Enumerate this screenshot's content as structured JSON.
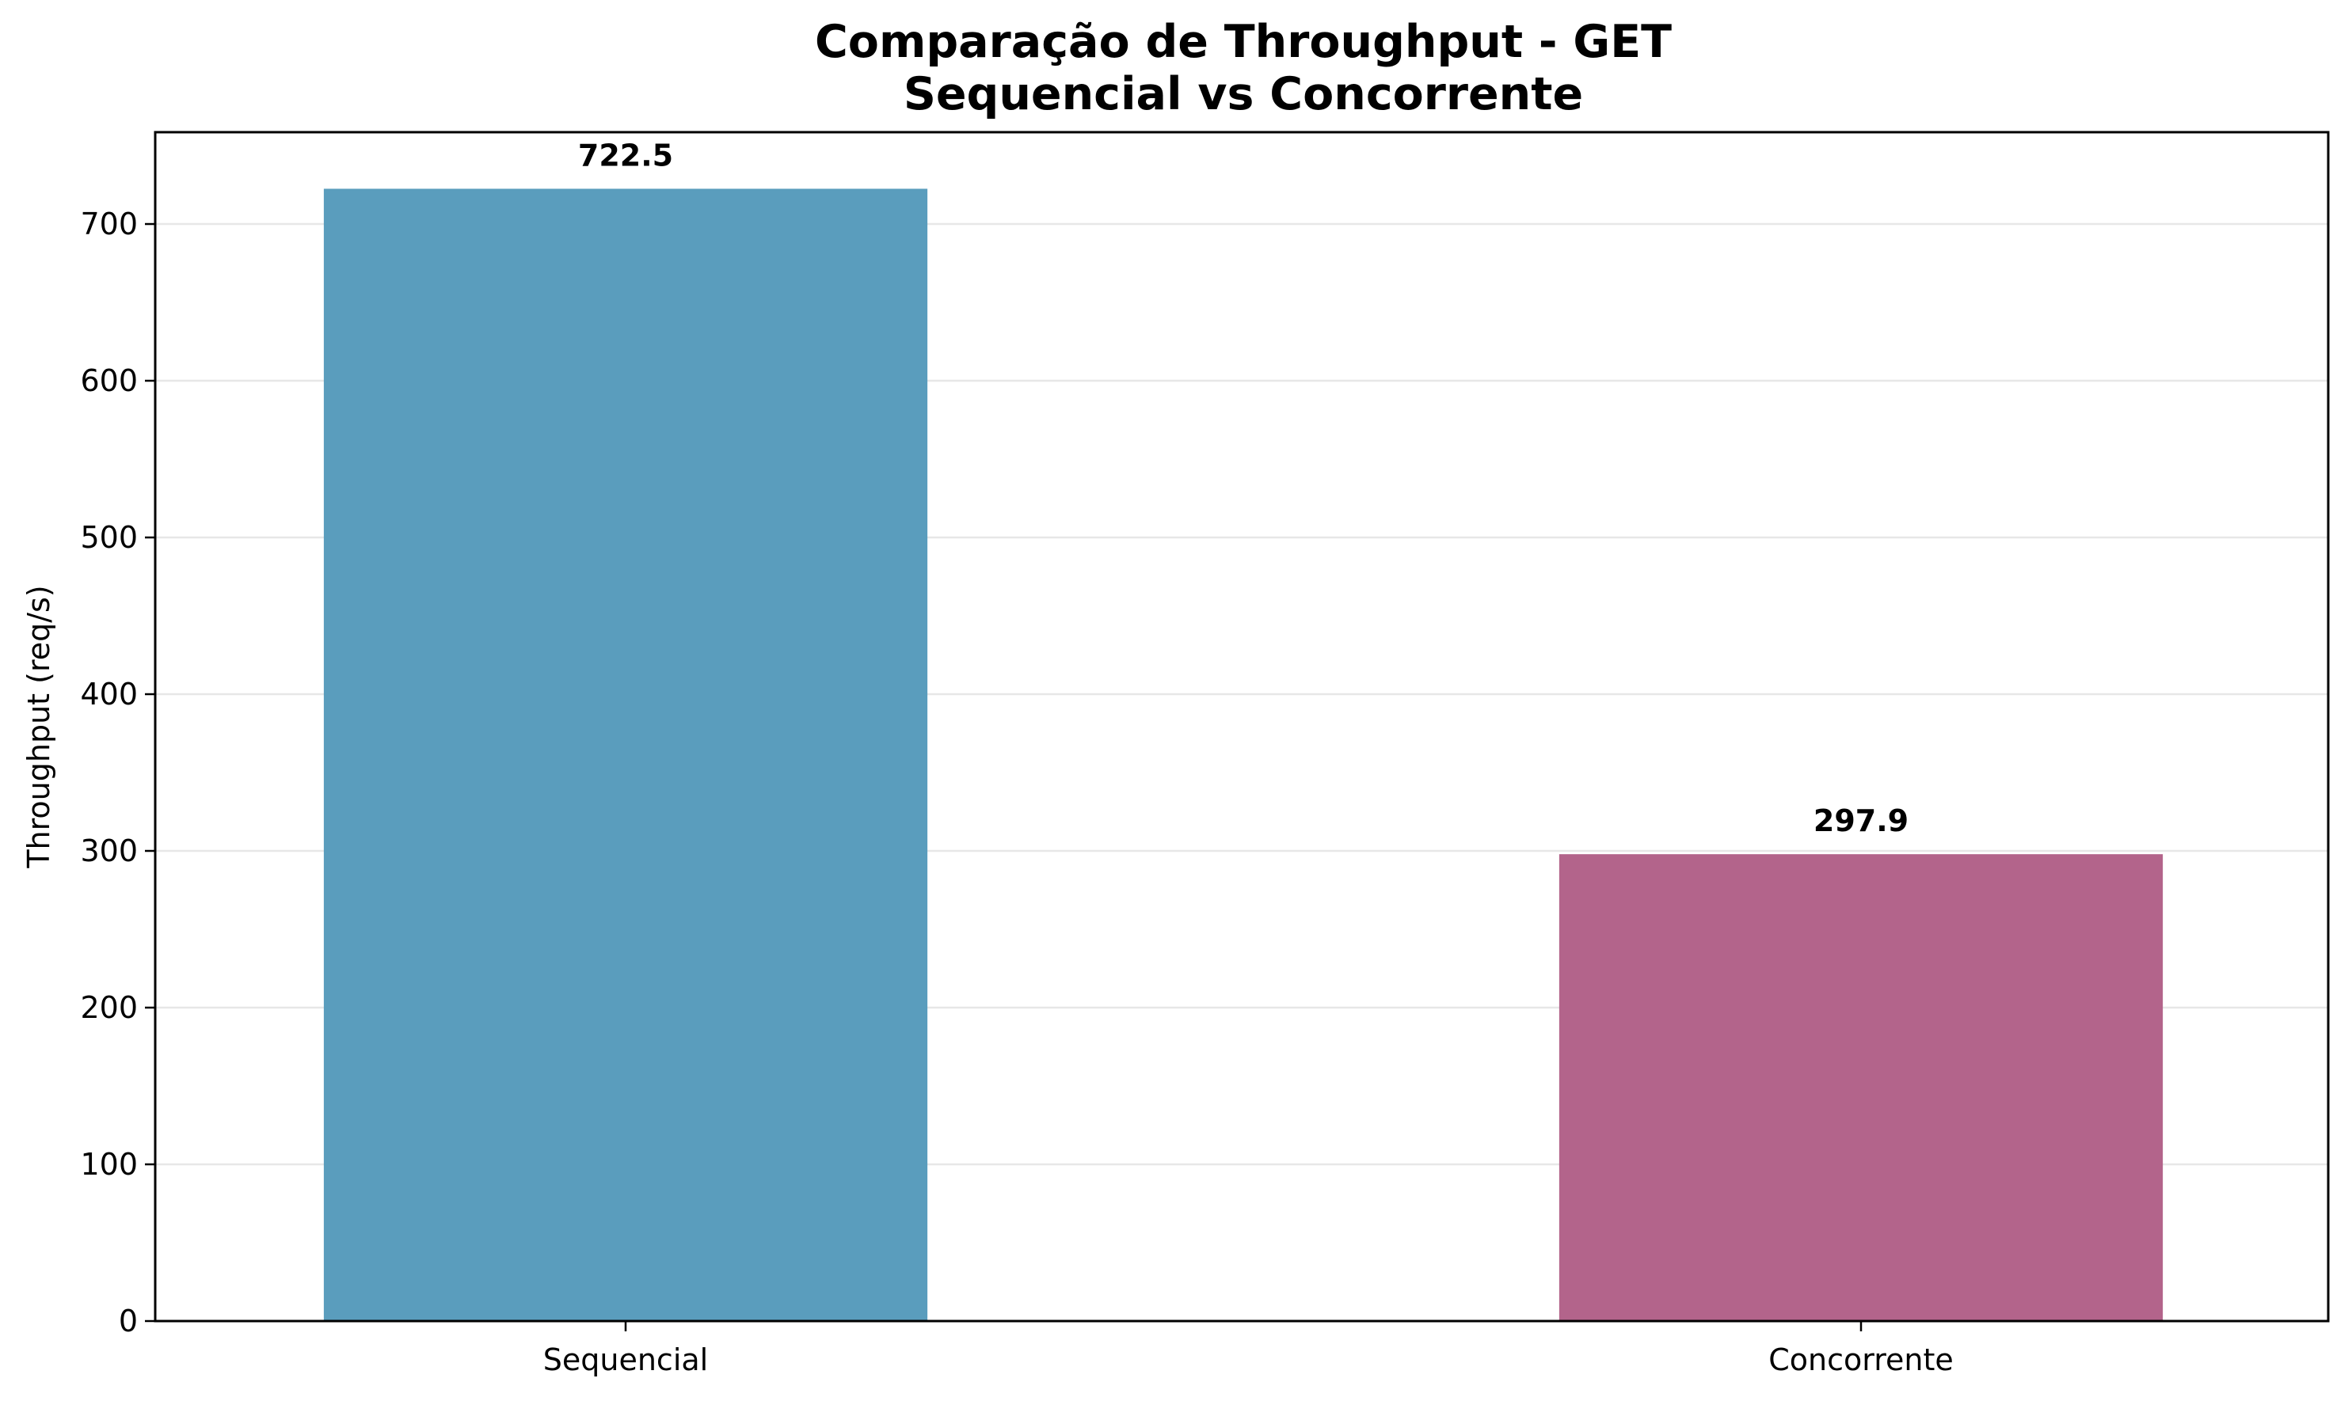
{
  "chart_data": {
    "type": "bar",
    "title_lines": [
      "Comparação de Throughput - GET",
      "Sequencial vs Concorrente"
    ],
    "xlabel": "",
    "ylabel": "Throughput (req/s)",
    "categories": [
      "Sequencial",
      "Concorrente"
    ],
    "values": [
      722.5,
      297.9
    ],
    "value_labels": [
      "722.5",
      "297.9"
    ],
    "colors": [
      "#5A9DBD",
      "#B3648B"
    ],
    "ylim": [
      0,
      758.6
    ],
    "yticks": [
      0,
      100,
      200,
      300,
      400,
      500,
      600,
      700
    ],
    "grid": "y",
    "legend": "none"
  }
}
